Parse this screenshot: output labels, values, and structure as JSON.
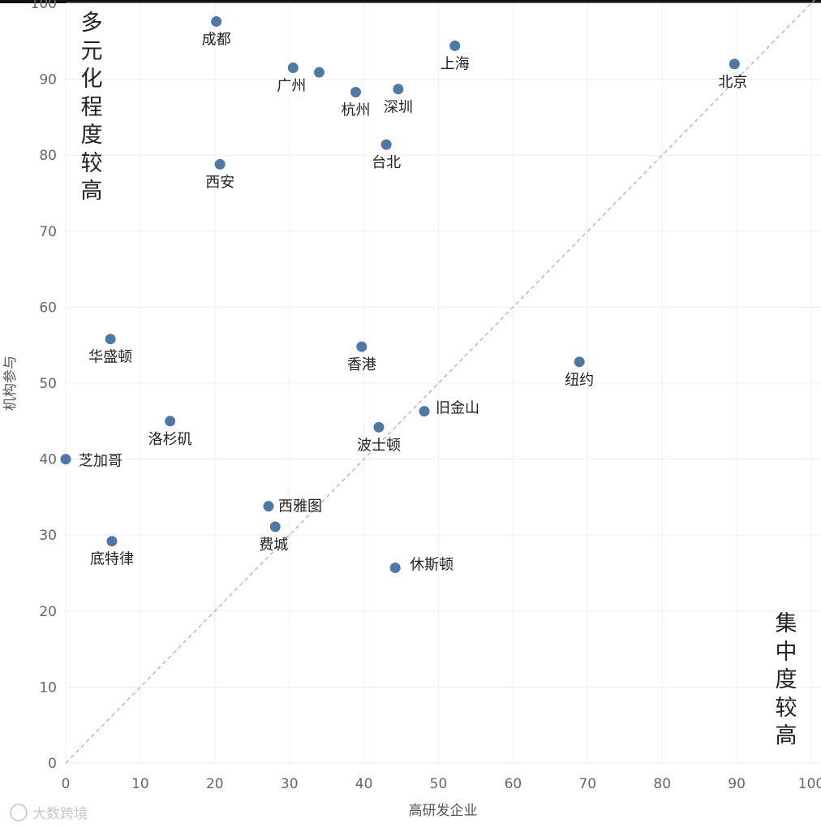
{
  "chart_data": {
    "type": "scatter",
    "xlabel": "高研发企业",
    "ylabel": "机构参与",
    "xlim": [
      0,
      100
    ],
    "ylim": [
      0,
      100
    ],
    "x_ticks": [
      0,
      10,
      20,
      30,
      40,
      50,
      60,
      70,
      80,
      90,
      100
    ],
    "y_ticks": [
      0,
      10,
      20,
      30,
      40,
      50,
      60,
      70,
      80,
      90,
      100
    ],
    "grid": true,
    "reference_line": "y = x (dashed)",
    "point_color": "#4e79a7",
    "points": [
      {
        "label": "成都",
        "x": 20.2,
        "y": 97.6
      },
      {
        "label": "广州",
        "x": 30.5,
        "y": 91.5
      },
      {
        "label": "",
        "x": 34,
        "y": 90.9
      },
      {
        "label": "上海",
        "x": 52.2,
        "y": 94.4
      },
      {
        "label": "北京",
        "x": 89.7,
        "y": 92
      },
      {
        "label": "杭州",
        "x": 38.9,
        "y": 88.3
      },
      {
        "label": "深圳",
        "x": 44.6,
        "y": 88.7
      },
      {
        "label": "台北",
        "x": 43,
        "y": 81.4
      },
      {
        "label": "西安",
        "x": 20.7,
        "y": 78.8
      },
      {
        "label": "华盛顿",
        "x": 6,
        "y": 55.8
      },
      {
        "label": "香港",
        "x": 39.7,
        "y": 54.8
      },
      {
        "label": "纽约",
        "x": 68.9,
        "y": 52.8
      },
      {
        "label": "旧金山",
        "x": 48.1,
        "y": 46.3
      },
      {
        "label": "洛杉矶",
        "x": 14,
        "y": 45
      },
      {
        "label": "波士顿",
        "x": 42,
        "y": 44.2
      },
      {
        "label": "芝加哥",
        "x": 0,
        "y": 40
      },
      {
        "label": "西雅图",
        "x": 27.2,
        "y": 33.8
      },
      {
        "label": "费城",
        "x": 28.1,
        "y": 31.1
      },
      {
        "label": "底特律",
        "x": 6.2,
        "y": 29.2
      },
      {
        "label": "休斯顿",
        "x": 44.2,
        "y": 25.7
      }
    ],
    "annotations": {
      "top_left": "多元化程度较高",
      "bottom_right": "集中度较高"
    }
  },
  "watermark": "大数跨境"
}
